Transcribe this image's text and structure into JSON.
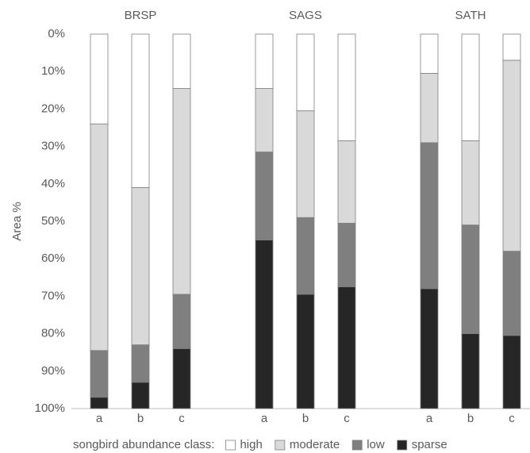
{
  "chart_data": {
    "type": "stacked_bar",
    "y_label": "Area %",
    "groups": [
      "BRSP",
      "SAGS",
      "SATH"
    ],
    "categories": [
      "a",
      "b",
      "c",
      "a",
      "b",
      "c",
      "a",
      "b",
      "c"
    ],
    "series": [
      {
        "name": "high",
        "color": "#ffffff",
        "values": [
          24,
          41,
          14.5,
          14.5,
          20.5,
          28.5,
          10.5,
          28.5,
          7
        ]
      },
      {
        "name": "moderate",
        "color": "#d9d9d9",
        "values": [
          60.5,
          42,
          55,
          17,
          28.5,
          22,
          18.5,
          22.5,
          51
        ]
      },
      {
        "name": "low",
        "color": "#7f7f7f",
        "values": [
          12.5,
          10,
          14.5,
          23.5,
          20.5,
          17,
          39,
          29,
          22.5
        ]
      },
      {
        "name": "sparse",
        "color": "#262626",
        "values": [
          3,
          7,
          16,
          45,
          30.5,
          32.5,
          32,
          20,
          19.5
        ]
      }
    ],
    "ylim": [
      0,
      100
    ],
    "y_reversed": true,
    "yticks": [
      {
        "value": 0,
        "label": "0%"
      },
      {
        "value": 10,
        "label": "10%"
      },
      {
        "value": 20,
        "label": "20%"
      },
      {
        "value": 30,
        "label": "30%"
      },
      {
        "value": 40,
        "label": "40%"
      },
      {
        "value": 50,
        "label": "50%"
      },
      {
        "value": 60,
        "label": "60%"
      },
      {
        "value": 70,
        "label": "70%"
      },
      {
        "value": 80,
        "label": "80%"
      },
      {
        "value": 90,
        "label": "90%"
      },
      {
        "value": 100,
        "label": "100%"
      }
    ],
    "grid": false,
    "legend_title": "songbird abundance class:",
    "legend_position": "bottom"
  }
}
